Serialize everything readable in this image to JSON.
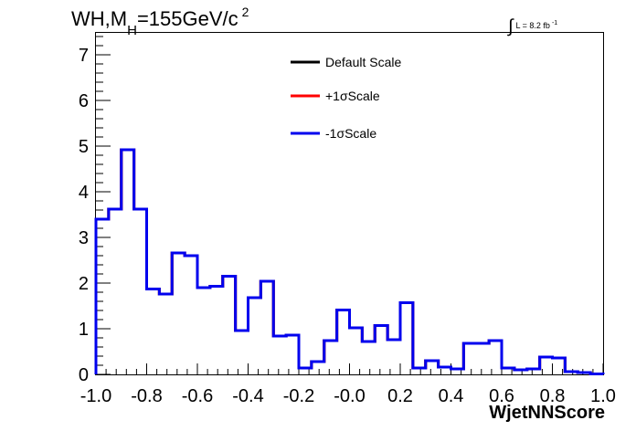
{
  "chart_data": {
    "type": "step",
    "title": {
      "main": "WH,M",
      "sub": "H",
      "rest": "=155GeV/c",
      "sup": "2"
    },
    "lumi": {
      "integral": "∫",
      "text": "L = 8.2 fb",
      "sup": "-1"
    },
    "xlabel": "WjetNNScore",
    "ylabel": "",
    "xlim": [
      -1.0,
      1.0
    ],
    "ylim": [
      0,
      7.5
    ],
    "x_ticks": [
      {
        "value": -1.0,
        "label": "-1.0"
      },
      {
        "value": -0.8,
        "label": "-0.8"
      },
      {
        "value": -0.6,
        "label": "-0.6"
      },
      {
        "value": -0.4,
        "label": "-0.4"
      },
      {
        "value": -0.2,
        "label": "-0.2"
      },
      {
        "value": 0.0,
        "label": "-0.0"
      },
      {
        "value": 0.2,
        "label": "0.2"
      },
      {
        "value": 0.4,
        "label": "0.4"
      },
      {
        "value": 0.6,
        "label": "0.6"
      },
      {
        "value": 0.8,
        "label": "0.8"
      },
      {
        "value": 1.0,
        "label": "1.0"
      }
    ],
    "y_ticks": [
      {
        "value": 0,
        "label": "0"
      },
      {
        "value": 1,
        "label": "1"
      },
      {
        "value": 2,
        "label": "2"
      },
      {
        "value": 3,
        "label": "3"
      },
      {
        "value": 4,
        "label": "4"
      },
      {
        "value": 5,
        "label": "5"
      },
      {
        "value": 6,
        "label": "6"
      },
      {
        "value": 7,
        "label": "7"
      }
    ],
    "bin_edges": [
      -1.0,
      -0.95,
      -0.9,
      -0.85,
      -0.8,
      -0.75,
      -0.7,
      -0.65,
      -0.6,
      -0.55,
      -0.5,
      -0.45,
      -0.4,
      -0.35,
      -0.3,
      -0.25,
      -0.2,
      -0.15,
      -0.1,
      -0.05,
      0.0,
      0.05,
      0.1,
      0.15,
      0.2,
      0.25,
      0.3,
      0.35,
      0.4,
      0.45,
      0.5,
      0.55,
      0.6,
      0.65,
      0.7,
      0.75,
      0.8,
      0.85,
      0.9,
      0.95,
      1.0
    ],
    "series": [
      {
        "name": "Default Scale",
        "color": "#000000",
        "values": [
          3.4,
          3.62,
          4.92,
          3.62,
          1.87,
          1.76,
          2.66,
          2.6,
          1.9,
          1.93,
          2.15,
          0.96,
          1.68,
          2.04,
          0.84,
          0.86,
          0.14,
          0.28,
          0.74,
          1.41,
          1.02,
          0.72,
          1.07,
          0.76,
          1.57,
          0.14,
          0.3,
          0.16,
          0.12,
          0.68,
          0.68,
          0.74,
          0.14,
          0.1,
          0.12,
          0.38,
          0.36,
          0.06,
          0.04,
          0.01
        ]
      },
      {
        "name": "+1σScale",
        "color": "#ff0000",
        "values": [
          3.4,
          3.62,
          4.92,
          3.62,
          1.87,
          1.76,
          2.66,
          2.6,
          1.9,
          1.93,
          2.15,
          0.96,
          1.68,
          2.04,
          0.84,
          0.86,
          0.14,
          0.28,
          0.74,
          1.41,
          1.02,
          0.72,
          1.07,
          0.76,
          1.57,
          0.14,
          0.3,
          0.16,
          0.12,
          0.68,
          0.68,
          0.74,
          0.14,
          0.1,
          0.12,
          0.38,
          0.36,
          0.06,
          0.04,
          0.01
        ]
      },
      {
        "name": "-1σScale",
        "color": "#0000ee",
        "values": [
          3.4,
          3.62,
          4.92,
          3.62,
          1.87,
          1.76,
          2.66,
          2.6,
          1.9,
          1.93,
          2.15,
          0.96,
          1.68,
          2.04,
          0.84,
          0.86,
          0.14,
          0.28,
          0.74,
          1.41,
          1.02,
          0.72,
          1.07,
          0.76,
          1.57,
          0.14,
          0.3,
          0.16,
          0.12,
          0.68,
          0.68,
          0.74,
          0.14,
          0.1,
          0.12,
          0.38,
          0.36,
          0.06,
          0.04,
          0.01
        ]
      }
    ],
    "legend": {
      "placement": "top-center",
      "entries": [
        "Default Scale",
        "+1σScale",
        "-1σScale"
      ]
    },
    "grid": false
  }
}
